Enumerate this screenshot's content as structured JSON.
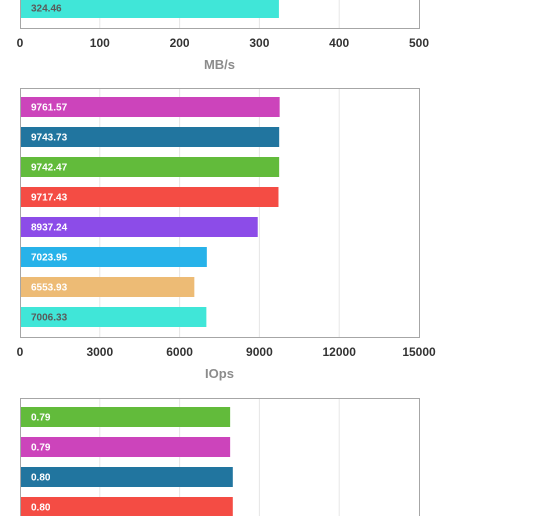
{
  "chart_data": [
    {
      "type": "bar",
      "orientation": "horizontal",
      "xlabel": "MB/s",
      "xlim": [
        0,
        500
      ],
      "xticks": [
        "0",
        "100",
        "200",
        "300",
        "400",
        "500"
      ],
      "grid": true,
      "values": [
        324.46
      ],
      "value_labels": [
        "324.46"
      ],
      "colors": [
        "#40e6d8"
      ],
      "label_colors": [
        "#5a5a5a"
      ]
    },
    {
      "type": "bar",
      "orientation": "horizontal",
      "xlabel": "IOps",
      "xlim": [
        0,
        15000
      ],
      "xticks": [
        "0",
        "3000",
        "6000",
        "9000",
        "12000",
        "15000"
      ],
      "grid": true,
      "values": [
        9761.57,
        9743.73,
        9742.47,
        9717.43,
        8937.24,
        7023.95,
        6553.93,
        7006.33
      ],
      "value_labels": [
        "9761.57",
        "9743.73",
        "9742.47",
        "9717.43",
        "8937.24",
        "7023.95",
        "6553.93",
        "7006.33"
      ],
      "colors": [
        "#cc44bb",
        "#21759f",
        "#62bb3b",
        "#f44c44",
        "#8c4ce8",
        "#27b2e9",
        "#edbb75",
        "#40e6d8"
      ],
      "label_colors": [
        "#ffffff",
        "#ffffff",
        "#ffffff",
        "#ffffff",
        "#ffffff",
        "#ffffff",
        "#ffffff",
        "#5a5a5a"
      ]
    },
    {
      "type": "bar",
      "orientation": "horizontal",
      "xlim": [
        0,
        1.5
      ],
      "grid": true,
      "values": [
        0.79,
        0.79,
        0.8,
        0.8
      ],
      "value_labels": [
        "0.79",
        "0.79",
        "0.80",
        "0.80"
      ],
      "colors": [
        "#62bb3b",
        "#cc44bb",
        "#21759f",
        "#f44c44"
      ],
      "label_colors": [
        "#ffffff",
        "#ffffff",
        "#ffffff",
        "#ffffff"
      ]
    }
  ]
}
